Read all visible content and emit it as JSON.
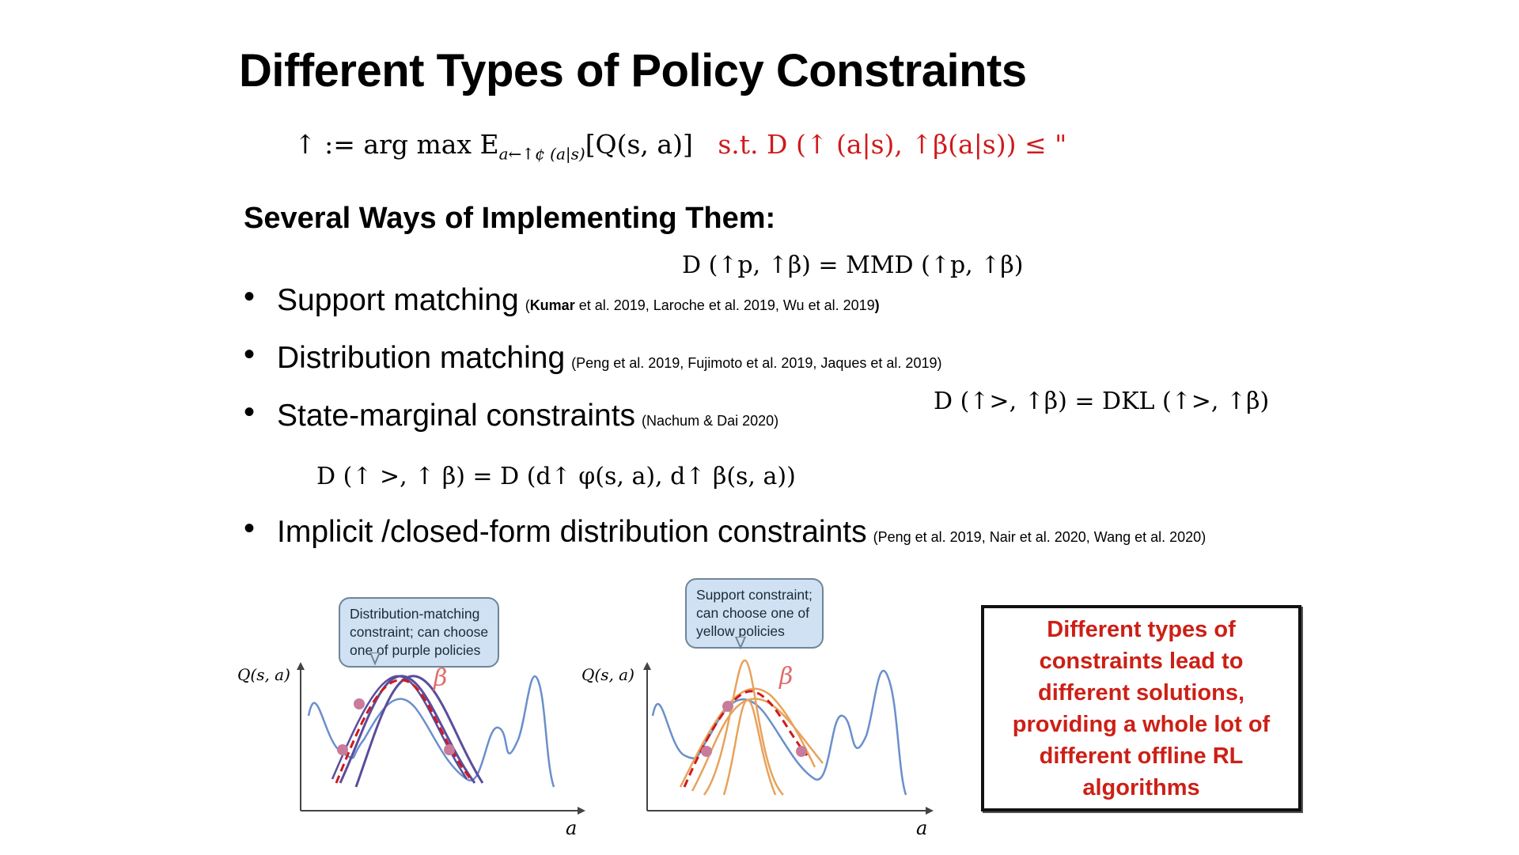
{
  "slide": {
    "title": "Different Types of Policy Constraints",
    "main_equation": {
      "lhs": "↑   := arg max E",
      "subscript": "a←↑¢ (a|s)",
      "objective": "[Q(s, a)]",
      "constraint": "s.t.   D (↑   (a|s), ↑β(a|s))  ≤ \""
    },
    "section_heading": "Several Ways of Implementing Them:",
    "eq_mmd": "D (↑p, ↑β) =  MMD (↑p, ↑β)",
    "eq_kl": "D (↑>, ↑β) =  DKL (↑>, ↑β)",
    "eq_state": "D (↑ >, ↑ β) =  D (d↑ φ(s, a), d↑ β(s, a))",
    "bullets": [
      {
        "label": "Support matching",
        "cite_bold": "Kumar",
        "cite_rest": " et al. 2019, Laroche et al. 2019, Wu et al. 2019",
        "cite_open": "(",
        "cite_close": ")"
      },
      {
        "label": "Distribution matching",
        "cite": "(Peng et al. 2019, Fujimoto et al. 2019, Jaques et al. 2019)"
      },
      {
        "label": "State-marginal constraints",
        "cite": "(Nachum & Dai 2020)"
      },
      {
        "label": "Implicit /closed-form distribution constraints",
        "cite": "(Peng et al. 2019, Nair et al. 2020, Wang et al. 2020)"
      }
    ],
    "plot_left": {
      "callout": [
        "Distribution-matching",
        "constraint; can choose",
        "one of purple policies"
      ],
      "y_label": "Q(s, a)",
      "x_label": "a",
      "beta_label": "β"
    },
    "plot_right": {
      "callout": [
        "Support constraint;",
        "can choose one of",
        "yellow policies"
      ],
      "y_label": "Q(s, a)",
      "x_label": "a",
      "beta_label": "β"
    },
    "note": "Different types of constraints lead to different solutions, providing a whole lot of different offline RL algorithms",
    "colors": {
      "red": "#d0191b",
      "blue_curve": "#6a8fcc",
      "purple": "#5a4d9c",
      "orange": "#e8a25b",
      "dot": "#c97b9a"
    }
  }
}
